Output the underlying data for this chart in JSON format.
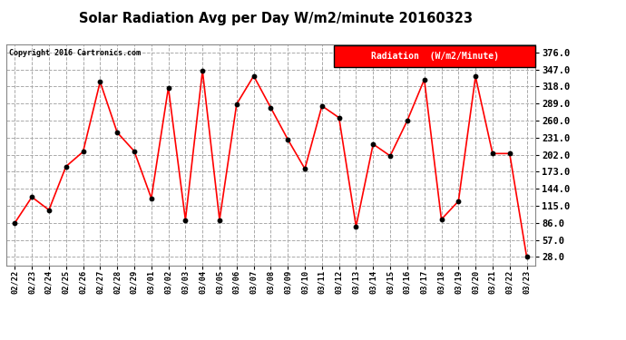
{
  "title": "Solar Radiation Avg per Day W/m2/minute 20160323",
  "copyright": "Copyright 2016 Cartronics.com",
  "legend_label": "Radiation  (W/m2/Minute)",
  "dates": [
    "02/22",
    "02/23",
    "02/24",
    "02/25",
    "02/26",
    "02/27",
    "02/28",
    "02/29",
    "03/01",
    "03/02",
    "03/03",
    "03/04",
    "03/05",
    "03/06",
    "03/07",
    "03/08",
    "03/09",
    "03/10",
    "03/11",
    "03/12",
    "03/13",
    "03/14",
    "03/15",
    "03/16",
    "03/17",
    "03/18",
    "03/19",
    "03/20",
    "03/21",
    "03/22",
    "03/23"
  ],
  "values": [
    86,
    130,
    108,
    182,
    207,
    326,
    240,
    208,
    128,
    316,
    91,
    345,
    91,
    288,
    336,
    282,
    228,
    178,
    285,
    265,
    80,
    220,
    200,
    260,
    330,
    92,
    123,
    335,
    204,
    204,
    28
  ],
  "line_color": "red",
  "marker_color": "black",
  "bg_color": "#ffffff",
  "plot_bg_color": "#ffffff",
  "grid_color": "#aaaaaa",
  "yticks": [
    28.0,
    57.0,
    86.0,
    115.0,
    144.0,
    173.0,
    202.0,
    231.0,
    260.0,
    289.0,
    318.0,
    347.0,
    376.0
  ],
  "ylim": [
    14,
    390
  ],
  "legend_bg": "red",
  "legend_text_color": "white"
}
